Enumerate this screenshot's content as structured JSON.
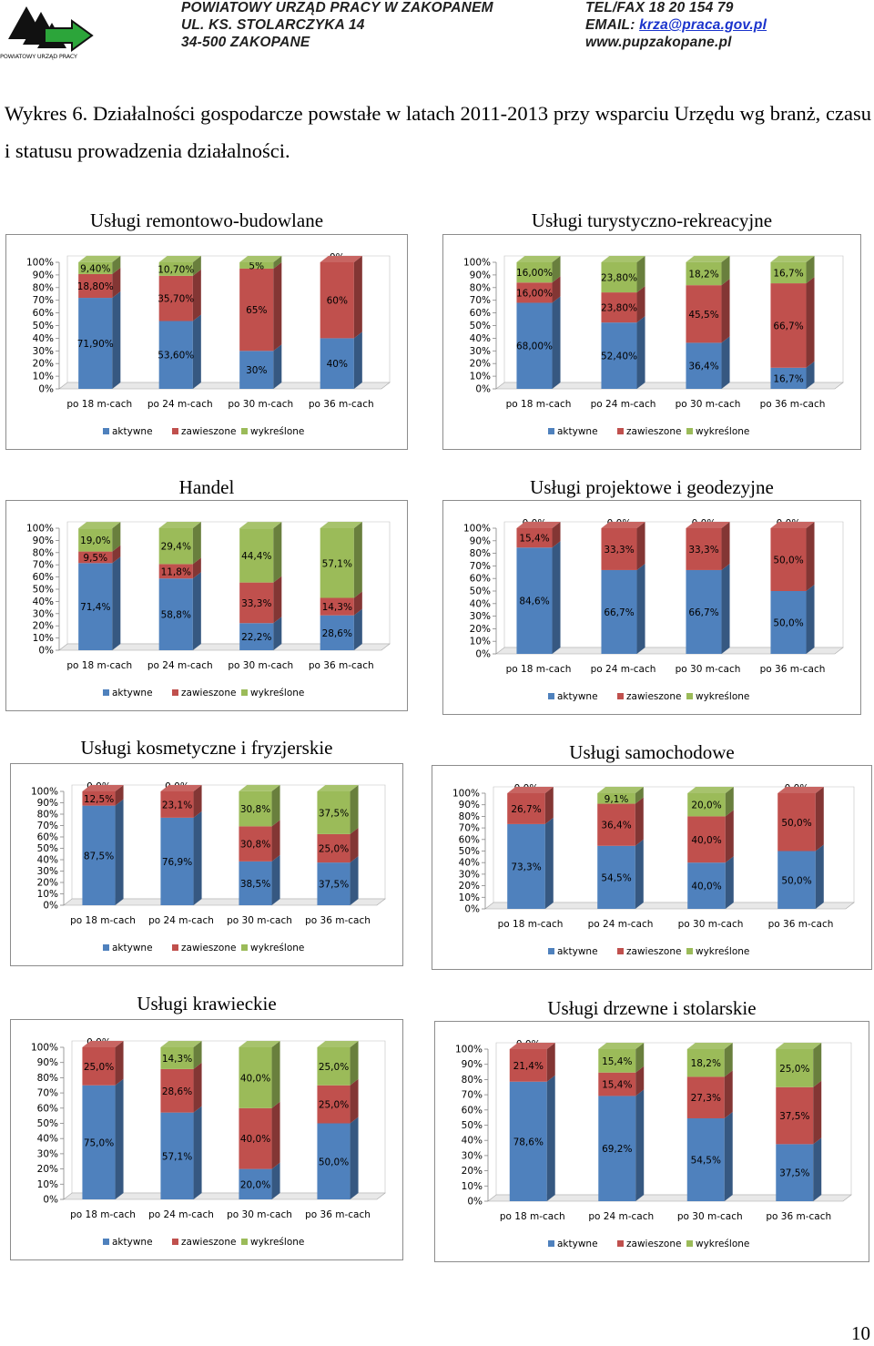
{
  "header": {
    "logo_caption": "POWIATOWY URZĄD PRACY",
    "left": [
      "POWIATOWY URZĄD PRACY W ZAKOPANEM",
      "UL. KS. STOLARCZYKA 14",
      "34-500 ZAKOPANE"
    ],
    "tel": "TEL/FAX 18 20 154 79",
    "email_label": "EMAIL: ",
    "email": "krza@praca.gov.pl",
    "www": "www.pupzakopane.pl"
  },
  "caption": "Wykres 6. Działalności gospodarcze powstałe w latach 2011-2013 przy wsparciu Urzędu wg branż, czasu i statusu prowadzenia działalności.",
  "page_number": "10",
  "colors": {
    "aktywne": "#4f81bd",
    "zawieszone": "#c0504d",
    "wykreslone": "#9bbb59"
  },
  "chart_data": [
    {
      "type": "bar",
      "stacked": true,
      "title": "Usługi remontowo-budowlane",
      "categories": [
        "po 18 m-cach",
        "po 24 m-cach",
        "po 30 m-cach",
        "po 36 m-cach"
      ],
      "yticks": [
        "0%",
        "10%",
        "20%",
        "30%",
        "40%",
        "50%",
        "60%",
        "70%",
        "80%",
        "90%",
        "100%"
      ],
      "ylim": [
        0,
        100
      ],
      "legend": "bottom",
      "series": [
        {
          "name": "aktywne",
          "values": [
            71.9,
            53.6,
            30,
            40
          ],
          "labels": [
            "71,90%",
            "53,60%",
            "30%",
            "40%"
          ]
        },
        {
          "name": "zawieszone",
          "values": [
            18.8,
            35.7,
            65,
            60
          ],
          "labels": [
            "18,80%",
            "35,70%",
            "65%",
            "60%"
          ]
        },
        {
          "name": "wykreślone",
          "values": [
            9.4,
            10.7,
            5,
            0
          ],
          "labels": [
            "9,40%",
            "10,70%",
            "5%",
            "0%"
          ]
        }
      ]
    },
    {
      "type": "bar",
      "stacked": true,
      "title": "Usługi turystyczno-rekreacyjne",
      "categories": [
        "po 18 m-cach",
        "po 24 m-cach",
        "po 30 m-cach",
        "po 36 m-cach"
      ],
      "yticks": [
        "0%",
        "10%",
        "20%",
        "30%",
        "40%",
        "50%",
        "60%",
        "70%",
        "80%",
        "90%",
        "100%"
      ],
      "ylim": [
        0,
        100
      ],
      "legend": "bottom",
      "series": [
        {
          "name": "aktywne",
          "values": [
            68,
            52.4,
            36.4,
            16.7
          ],
          "labels": [
            "68,00%",
            "52,40%",
            "36,4%",
            "16,7%"
          ]
        },
        {
          "name": "zawieszone",
          "values": [
            16,
            23.8,
            45.5,
            66.7
          ],
          "labels": [
            "16,00%",
            "23,80%",
            "45,5%",
            "66,7%"
          ]
        },
        {
          "name": "wykreślone",
          "values": [
            16,
            23.8,
            18.2,
            16.7
          ],
          "labels": [
            "16,00%",
            "23,80%",
            "18,2%",
            "16,7%"
          ]
        }
      ]
    },
    {
      "type": "bar",
      "stacked": true,
      "title": "Handel",
      "categories": [
        "po 18 m-cach",
        "po 24 m-cach",
        "po 30 m-cach",
        "po 36 m-cach"
      ],
      "yticks": [
        "0%",
        "10%",
        "20%",
        "30%",
        "40%",
        "50%",
        "60%",
        "70%",
        "80%",
        "90%",
        "100%"
      ],
      "ylim": [
        0,
        100
      ],
      "legend": "bottom",
      "series": [
        {
          "name": "aktywne",
          "values": [
            71.4,
            58.8,
            22.2,
            28.6
          ],
          "labels": [
            "71,4%",
            "58,8%",
            "22,2%",
            "28,6%"
          ]
        },
        {
          "name": "zawieszone",
          "values": [
            9.5,
            11.8,
            33.3,
            14.3
          ],
          "labels": [
            "9,5%",
            "11,8%",
            "33,3%",
            "14,3%"
          ]
        },
        {
          "name": "wykreślone",
          "values": [
            19,
            29.4,
            44.4,
            57.1
          ],
          "labels": [
            "19,0%",
            "29,4%",
            "44,4%",
            "57,1%"
          ]
        }
      ]
    },
    {
      "type": "bar",
      "stacked": true,
      "title": "Usługi projektowe i geodezyjne",
      "categories": [
        "po 18 m-cach",
        "po 24 m-cach",
        "po 30 m-cach",
        "po 36 m-cach"
      ],
      "yticks": [
        "0%",
        "10%",
        "20%",
        "30%",
        "40%",
        "50%",
        "60%",
        "70%",
        "80%",
        "90%",
        "100%"
      ],
      "ylim": [
        0,
        100
      ],
      "legend": "bottom",
      "series": [
        {
          "name": "aktywne",
          "values": [
            84.6,
            66.7,
            66.7,
            50
          ],
          "labels": [
            "84,6%",
            "66,7%",
            "66,7%",
            "50,0%"
          ]
        },
        {
          "name": "zawieszone",
          "values": [
            15.4,
            33.3,
            33.3,
            50
          ],
          "labels": [
            "15,4%",
            "33,3%",
            "33,3%",
            "50,0%"
          ]
        },
        {
          "name": "wykreślone",
          "values": [
            0,
            0,
            0,
            0
          ],
          "labels": [
            "0,0%",
            "0,0%",
            "0,0%",
            "0,0%"
          ]
        }
      ]
    },
    {
      "type": "bar",
      "stacked": true,
      "title": "Usługi kosmetyczne i fryzjerskie",
      "categories": [
        "po 18 m-cach",
        "po 24 m-cach",
        "po 30 m-cach",
        "po 36 m-cach"
      ],
      "yticks": [
        "0%",
        "10%",
        "20%",
        "30%",
        "40%",
        "50%",
        "60%",
        "70%",
        "80%",
        "90%",
        "100%"
      ],
      "ylim": [
        0,
        100
      ],
      "legend": "bottom",
      "series": [
        {
          "name": "aktywne",
          "values": [
            87.5,
            76.9,
            38.5,
            37.5
          ],
          "labels": [
            "87,5%",
            "76,9%",
            "38,5%",
            "37,5%"
          ]
        },
        {
          "name": "zawieszone",
          "values": [
            12.5,
            23.1,
            30.8,
            25
          ],
          "labels": [
            "12,5%",
            "23,1%",
            "30,8%",
            "25,0%"
          ]
        },
        {
          "name": "wykreślone",
          "values": [
            0,
            0,
            30.8,
            37.5
          ],
          "labels": [
            "0,0%",
            "0,0%",
            "30,8%",
            "37,5%"
          ]
        }
      ]
    },
    {
      "type": "bar",
      "stacked": true,
      "title": "Usługi samochodowe",
      "categories": [
        "po 18 m-cach",
        "po 24 m-cach",
        "po 30 m-cach",
        "po 36 m-cach"
      ],
      "yticks": [
        "0%",
        "10%",
        "20%",
        "30%",
        "40%",
        "50%",
        "60%",
        "70%",
        "80%",
        "90%",
        "100%"
      ],
      "ylim": [
        0,
        100
      ],
      "legend": "bottom",
      "series": [
        {
          "name": "aktywne",
          "values": [
            73.3,
            54.5,
            40,
            50
          ],
          "labels": [
            "73,3%",
            "54,5%",
            "40,0%",
            "50,0%"
          ]
        },
        {
          "name": "zawieszone",
          "values": [
            26.7,
            36.4,
            40,
            50
          ],
          "labels": [
            "26,7%",
            "36,4%",
            "40,0%",
            "50,0%"
          ]
        },
        {
          "name": "wykreślone",
          "values": [
            0,
            9.1,
            20,
            0
          ],
          "labels": [
            "0,0%",
            "9,1%",
            "20,0%",
            "0,0%"
          ]
        }
      ]
    },
    {
      "type": "bar",
      "stacked": true,
      "title": "Usługi krawieckie",
      "categories": [
        "po 18 m-cach",
        "po 24 m-cach",
        "po 30 m-cach",
        "po 36 m-cach"
      ],
      "yticks": [
        "0%",
        "10%",
        "20%",
        "30%",
        "40%",
        "50%",
        "60%",
        "70%",
        "80%",
        "90%",
        "100%"
      ],
      "ylim": [
        0,
        100
      ],
      "legend": "bottom",
      "series": [
        {
          "name": "aktywne",
          "values": [
            75,
            57.1,
            20,
            50
          ],
          "labels": [
            "75,0%",
            "57,1%",
            "20,0%",
            "50,0%"
          ]
        },
        {
          "name": "zawieszone",
          "values": [
            25,
            28.6,
            40,
            25
          ],
          "labels": [
            "25,0%",
            "28,6%",
            "40,0%",
            "25,0%"
          ]
        },
        {
          "name": "wykreślone",
          "values": [
            0,
            14.3,
            40,
            25
          ],
          "labels": [
            "0,0%",
            "14,3%",
            "40,0%",
            "25,0%"
          ]
        }
      ]
    },
    {
      "type": "bar",
      "stacked": true,
      "title": "Usługi drzewne i stolarskie",
      "categories": [
        "po 18 m-cach",
        "po 24 m-cach",
        "po 30 m-cach",
        "po 36 m-cach"
      ],
      "yticks": [
        "0%",
        "10%",
        "20%",
        "30%",
        "40%",
        "50%",
        "60%",
        "70%",
        "80%",
        "90%",
        "100%"
      ],
      "ylim": [
        0,
        100
      ],
      "legend": "bottom",
      "series": [
        {
          "name": "aktywne",
          "values": [
            78.6,
            69.2,
            54.5,
            37.5
          ],
          "labels": [
            "78,6%",
            "69,2%",
            "54,5%",
            "37,5%"
          ]
        },
        {
          "name": "zawieszone",
          "values": [
            21.4,
            15.4,
            27.3,
            37.5
          ],
          "labels": [
            "21,4%",
            "15,4%",
            "27,3%",
            "37,5%"
          ]
        },
        {
          "name": "wykreślone",
          "values": [
            0,
            15.4,
            18.2,
            25
          ],
          "labels": [
            "0,0%",
            "15,4%",
            "18,2%",
            "25,0%"
          ]
        }
      ]
    }
  ]
}
